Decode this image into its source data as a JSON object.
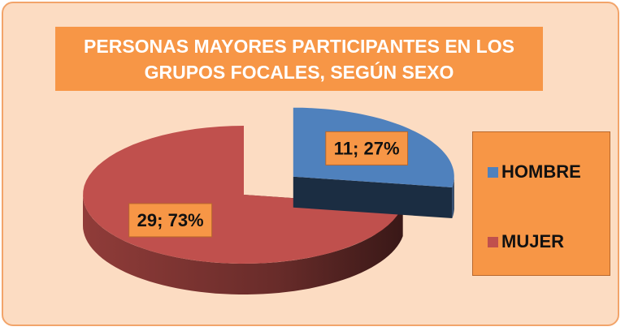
{
  "chart_data": {
    "type": "pie",
    "title": "PERSONAS MAYORES PARTICIPANTES EN LOS GRUPOS FOCALES, SEGÚN SEXO",
    "categories": [
      "HOMBRE",
      "MUJER"
    ],
    "values": [
      11,
      29
    ],
    "value_labels": [
      "11; 27%",
      "29; 73%"
    ],
    "colors": [
      "#4f81bd",
      "#c0504d"
    ],
    "legend": "right"
  }
}
